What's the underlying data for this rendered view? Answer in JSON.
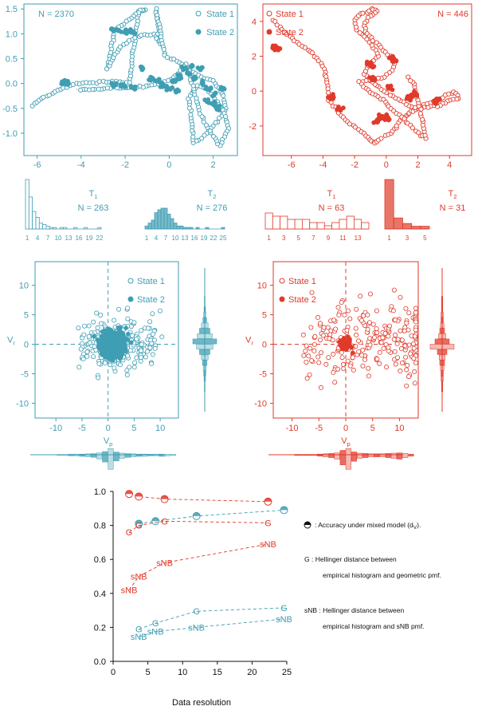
{
  "colors": {
    "teal": "#3f9eb3",
    "red": "#e03a2a",
    "black": "#111111"
  },
  "chart_data": [
    {
      "type": "scatter",
      "panel": "track-left",
      "annotation": "N = 2370",
      "legend": [
        "State 1",
        "State 2"
      ],
      "legend_position": "top-right",
      "xticks": [
        "-6",
        "-4",
        "-2",
        "0",
        "2"
      ],
      "yticks": [
        "1.5",
        "1.0",
        "0.5",
        "0.0",
        "-0.5",
        "-1.0"
      ],
      "xlim": [
        -6.6,
        3.1
      ],
      "ylim": [
        -1.45,
        1.6
      ],
      "series": [
        {
          "name": "State 1",
          "x": [
            -6.2,
            -5.8,
            -5.3,
            -4.8,
            -4.2,
            -3.6,
            -3.0,
            -2.4,
            -1.8,
            -1.4,
            -1.1,
            -1.3,
            -2.5,
            -2.8,
            -2.2,
            -1.4,
            -0.7,
            -0.4,
            -0.6,
            -0.2,
            0.4,
            0.8,
            1.2,
            1.6,
            2.0,
            2.4,
            2.6,
            2.2,
            1.8,
            1.5,
            1.1,
            0.9,
            1.3,
            1.7,
            2.1,
            2.5,
            2.7,
            2.3,
            1.9,
            1.4,
            0.8,
            0.2,
            -0.5,
            -1.2,
            -2.0,
            -2.8,
            -3.5,
            -4.2
          ],
          "y": [
            -0.45,
            -0.3,
            -0.2,
            -0.1,
            0.0,
            0.02,
            0.03,
            0.04,
            0.02,
            1.45,
            1.48,
            1.47,
            1.05,
            0.3,
            0.75,
            0.95,
            1.0,
            0.8,
            1.5,
            0.55,
            0.45,
            0.3,
            0.2,
            0.1,
            0.05,
            -0.2,
            -0.5,
            -0.75,
            -0.95,
            -1.1,
            -1.2,
            -0.3,
            -0.05,
            -0.1,
            -0.3,
            -0.6,
            -0.9,
            -1.25,
            -1.0,
            -0.6,
            0.4,
            0.1,
            -0.02,
            -0.06,
            -0.08,
            -0.1,
            -0.12,
            -0.12
          ]
        },
        {
          "name": "State 2",
          "x": [
            -4.8,
            -4.6,
            -2.6,
            -2.3,
            -2.0,
            -1.7,
            -1.2,
            -0.8,
            -0.3,
            0.2,
            0.5,
            0.9,
            1.2,
            1.5,
            1.8,
            2.1,
            2.4,
            1.0,
            1.4,
            0.7,
            -0.5,
            0.0,
            0.3,
            1.7,
            2.0,
            2.2,
            -2.5,
            -2.1,
            -1.6
          ],
          "y": [
            0.02,
            0.0,
            1.08,
            1.07,
            1.05,
            1.04,
            0.3,
            0.1,
            -0.05,
            0.05,
            0.15,
            0.2,
            0.1,
            0.0,
            -0.1,
            -0.2,
            -0.1,
            0.35,
            0.3,
            0.3,
            0.05,
            -0.1,
            -0.15,
            -0.35,
            -0.4,
            -0.5,
            -0.02,
            -0.05,
            -0.08
          ]
        }
      ]
    },
    {
      "type": "scatter",
      "panel": "track-right",
      "annotation": "N = 446",
      "legend": [
        "State 1",
        "State 2"
      ],
      "legend_position": "top-left",
      "xticks": [
        "-6",
        "-4",
        "-2",
        "0",
        "2",
        "4"
      ],
      "yticks": [
        "4",
        "2",
        "0",
        "-2"
      ],
      "xlim": [
        -7.8,
        5.4
      ],
      "ylim": [
        -3.7,
        5.0
      ],
      "series": [
        {
          "name": "State 1",
          "x": [
            -7.2,
            -6.6,
            -5.8,
            -4.8,
            -3.9,
            -3.7,
            -3.6,
            -3.1,
            -2.6,
            -1.6,
            -1.0,
            -0.7,
            -0.3,
            0.3,
            0.6,
            0.9,
            1.3,
            1.6,
            2.0,
            2.6,
            3.2,
            3.8,
            4.3,
            4.6,
            3.9,
            3.4,
            2.8,
            2.2,
            1.6,
            1.1,
            0.4,
            -0.3,
            -0.9,
            -1.4,
            -1.1,
            -0.5,
            -0.8,
            -1.2,
            -1.9,
            -2.0,
            -1.6,
            -0.9,
            -0.6,
            -1.0,
            -1.4,
            -1.3,
            -0.8,
            -0.3,
            0.1,
            0.6,
            0.4,
            -0.1,
            -1.7,
            -1.0,
            -0.2,
            0.3,
            1.0,
            1.5,
            2.0,
            2.5,
            1.8,
            1.2
          ],
          "y": [
            4.1,
            3.5,
            2.9,
            2.3,
            1.3,
            0.3,
            -0.5,
            -1.1,
            -1.7,
            -2.3,
            -2.8,
            -3.0,
            -2.7,
            -2.4,
            -2.1,
            -1.7,
            -1.4,
            -1.2,
            -1.0,
            -0.7,
            -0.5,
            -0.3,
            0.0,
            -0.4,
            -0.6,
            -0.8,
            -0.9,
            -1.0,
            -0.9,
            -0.6,
            -0.3,
            0.1,
            0.5,
            1.0,
            1.5,
            2.0,
            2.5,
            3.0,
            3.5,
            4.1,
            4.4,
            4.7,
            4.6,
            4.3,
            3.9,
            3.4,
            2.9,
            2.5,
            2.1,
            1.7,
            1.2,
            0.8,
            0.5,
            -0.1,
            -0.5,
            -1.0,
            -1.5,
            -2.0,
            -2.4,
            -2.7,
            0.4,
            0.9
          ]
        },
        {
          "name": "State 2",
          "x": [
            -7.0,
            -6.8,
            -3.6,
            -3.4,
            -2.9,
            -1.1,
            -0.9,
            0.3,
            0.5,
            0.2,
            -0.4,
            -0.6,
            1.4,
            1.6,
            1.8,
            3.1,
            3.3,
            0.1,
            -0.1,
            -1.0
          ],
          "y": [
            2.5,
            2.4,
            -0.4,
            -0.3,
            -1.0,
            1.6,
            1.4,
            1.9,
            1.8,
            0.2,
            -1.5,
            -1.7,
            -0.3,
            -0.4,
            -0.2,
            -0.6,
            -0.5,
            -1.6,
            -1.4,
            0.7
          ]
        }
      ]
    },
    {
      "type": "bar",
      "panel": "hist-T1-left",
      "label": "T",
      "subscript": "1",
      "annotation": "N = 263",
      "xticks": [
        "1",
        "4",
        "7",
        "10",
        "13",
        "16",
        "19",
        "22"
      ],
      "values": [
        34,
        22,
        12,
        8,
        4,
        3,
        2,
        1,
        1,
        0,
        1,
        1,
        0,
        0,
        1,
        0,
        0,
        1,
        0,
        0,
        0,
        1
      ]
    },
    {
      "type": "bar",
      "panel": "hist-T2-left",
      "label": "T",
      "subscript": "2",
      "annotation": "N = 276",
      "xticks": [
        "1",
        "4",
        "7",
        "10",
        "13",
        "16",
        "19",
        "22",
        "25"
      ],
      "values": [
        2,
        4,
        6,
        11,
        13,
        14,
        14,
        10,
        7,
        4,
        2,
        2,
        1,
        1,
        1,
        0,
        1,
        0,
        0,
        1,
        0,
        0,
        0,
        0,
        1
      ]
    },
    {
      "type": "bar",
      "panel": "hist-T1-right",
      "label": "T",
      "subscript": "1",
      "annotation": "N = 63",
      "xticks": [
        "1",
        "3",
        "5",
        "7",
        "9",
        "11",
        "13"
      ],
      "values": [
        5,
        4,
        4,
        3,
        3,
        3,
        2,
        2,
        1,
        2,
        3,
        4,
        3,
        2
      ]
    },
    {
      "type": "bar",
      "panel": "hist-T2-right",
      "label": "T",
      "subscript": "2",
      "annotation": "N = 31",
      "xticks": [
        "1",
        "3",
        "5"
      ],
      "values": [
        18,
        4,
        2,
        1,
        1
      ]
    },
    {
      "type": "scatter",
      "panel": "velocity-left",
      "legend": [
        "State 1",
        "State 2"
      ],
      "legend_position": "top-right",
      "xlabel": "V",
      "xlabel_sub": "p",
      "ylabel": "V",
      "ylabel_sub": "r",
      "xticks": [
        "-10",
        "-5",
        "0",
        "5",
        "10"
      ],
      "yticks": [
        "10",
        "5",
        "0",
        "-5",
        "-10"
      ],
      "xlim": [
        -14,
        13.5
      ],
      "ylim": [
        -12.5,
        14
      ],
      "side_hist_y": [
        1,
        1,
        2,
        3,
        5,
        9,
        14,
        20,
        32,
        22,
        14,
        9,
        6,
        4,
        3,
        2,
        1,
        1
      ],
      "side_hist_x": [
        1,
        1,
        2,
        2,
        3,
        4,
        5,
        8,
        14,
        28,
        12,
        7,
        5,
        4,
        3,
        3,
        2,
        2,
        3,
        2,
        1
      ]
    },
    {
      "type": "scatter",
      "panel": "velocity-right",
      "legend": [
        "State 1",
        "State 2"
      ],
      "legend_position": "top-left",
      "xlabel": "V",
      "xlabel_sub": "p",
      "ylabel": "V",
      "ylabel_sub": "r",
      "xticks": [
        "-10",
        "-5",
        "0",
        "5",
        "10"
      ],
      "yticks": [
        "10",
        "5",
        "0",
        "-5",
        "-10"
      ],
      "xlim": [
        -13.5,
        13.5
      ],
      "ylim": [
        -12.5,
        14
      ],
      "side_hist_y": [
        1,
        1,
        1,
        2,
        2,
        3,
        4,
        6,
        12,
        20,
        8,
        5,
        4,
        3,
        2,
        2,
        1,
        1
      ],
      "side_hist_x": [
        1,
        1,
        1,
        1,
        2,
        3,
        4,
        6,
        14,
        20,
        9,
        5,
        4,
        3,
        3,
        3,
        4,
        5,
        6,
        4,
        2
      ]
    },
    {
      "type": "line",
      "panel": "accuracy",
      "xlabel": "Data resolution",
      "xticks": [
        "0",
        "5",
        "10",
        "15",
        "20",
        "25"
      ],
      "yticks": [
        "0.0",
        "0.2",
        "0.4",
        "0.6",
        "0.8",
        "1.0"
      ],
      "xlim": [
        0,
        25
      ],
      "ylim": [
        0,
        1
      ],
      "series": [
        {
          "name": "accuracy-red",
          "marker": "half-circle",
          "color": "red",
          "x": [
            2.3,
            3.7,
            7.4,
            22.3
          ],
          "y": [
            0.985,
            0.97,
            0.955,
            0.94
          ]
        },
        {
          "name": "accuracy-teal",
          "marker": "half-circle",
          "color": "teal",
          "x": [
            3.7,
            6.1,
            12.0,
            24.6
          ],
          "y": [
            0.81,
            0.825,
            0.855,
            0.89
          ]
        },
        {
          "name": "G-red",
          "label": "G",
          "color": "red",
          "x": [
            2.3,
            3.7,
            7.4,
            22.3
          ],
          "y": [
            0.76,
            0.8,
            0.825,
            0.815
          ]
        },
        {
          "name": "sNB-red",
          "label": "sNB",
          "color": "red",
          "x": [
            2.3,
            3.7,
            7.4,
            22.3
          ],
          "y": [
            0.42,
            0.5,
            0.58,
            0.69
          ]
        },
        {
          "name": "G-teal",
          "label": "G",
          "color": "teal",
          "x": [
            3.7,
            6.1,
            12.0,
            24.6
          ],
          "y": [
            0.19,
            0.225,
            0.295,
            0.315
          ]
        },
        {
          "name": "sNB-teal",
          "label": "sNB",
          "color": "teal",
          "x": [
            3.7,
            6.1,
            12.0,
            24.6
          ],
          "y": [
            0.145,
            0.175,
            0.2,
            0.25
          ]
        }
      ],
      "legend_notes": {
        "accuracy": ": Accuracy under mixed model (d",
        "accuracy_sub": "V",
        "accuracy_end": ").",
        "g_line1": "G : Hellinger distance between",
        "g_line2": "empirical histogram and geometric pmf.",
        "snb_line1": "sNB : Hellinger distance between",
        "snb_line2": "empirical histogram and sNB pmf."
      }
    }
  ]
}
